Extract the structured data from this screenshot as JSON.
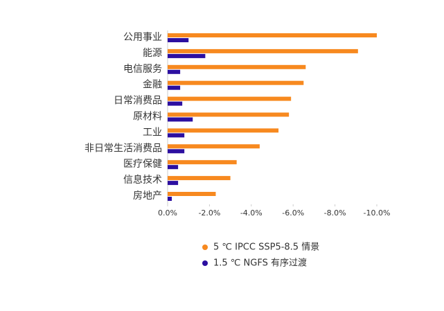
{
  "chart_data": {
    "type": "hbar",
    "categories": [
      "公用事业",
      "能源",
      "电信服务",
      "金融",
      "日常消费品",
      "原材料",
      "工业",
      "非日常生活消费品",
      "医疗保健",
      "信息技术",
      "房地产"
    ],
    "series": [
      {
        "name": "5 ℃ IPCC SSP5-8.5 情景",
        "color": "#f7891f",
        "values": [
          -10.0,
          -9.1,
          -6.6,
          -6.5,
          -5.9,
          -5.8,
          -5.3,
          -4.4,
          -3.3,
          -3.0,
          -2.3
        ]
      },
      {
        "name": "1.5 ℃ NGFS 有序过渡",
        "color": "#2c0fa0",
        "values": [
          -1.0,
          -1.8,
          -0.6,
          -0.6,
          -0.7,
          -1.2,
          -0.8,
          -0.8,
          -0.5,
          -0.5,
          -0.2
        ]
      }
    ],
    "xlim": [
      0,
      -10
    ],
    "xticks": [
      {
        "value": 0,
        "label": "0.0%"
      },
      {
        "value": -2,
        "label": "-2.0%"
      },
      {
        "value": -4,
        "label": "-4.0%"
      },
      {
        "value": -6,
        "label": "-6.0%"
      },
      {
        "value": -8,
        "label": "-8.0%"
      },
      {
        "value": -10,
        "label": "-10.0%"
      }
    ],
    "legend": "bottom"
  }
}
